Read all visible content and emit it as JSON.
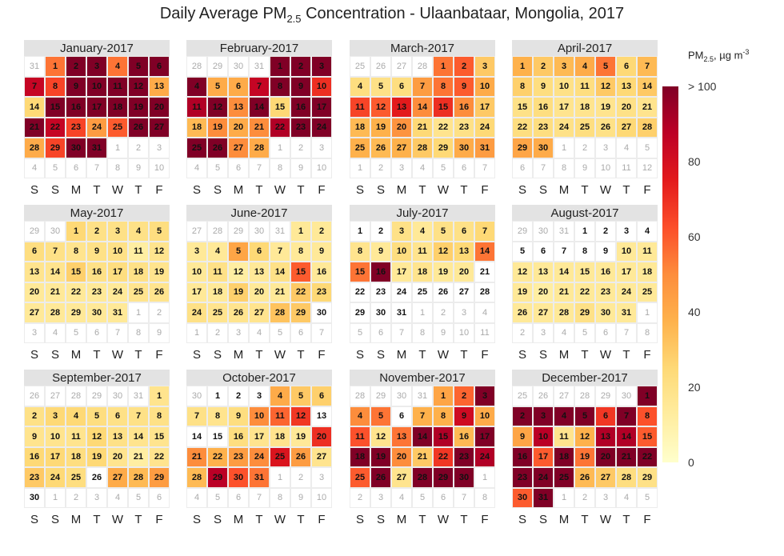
{
  "chart_data": {
    "type": "heatmap",
    "title_prefix": "Daily Average PM",
    "title_sub": "2.5",
    "title_suffix": " Concentration - Ulaanbataar, Mongolia, 2017",
    "year": 2017,
    "weekday_labels": [
      "S",
      "S",
      "M",
      "T",
      "W",
      "T",
      "F"
    ],
    "colorbar": {
      "label_prefix": "PM",
      "label_sub": "2.5",
      "label_mid": ", µg m",
      "label_sup": "-3",
      "ticks": [
        {
          "value": 100,
          "label": "> 100"
        },
        {
          "value": 80,
          "label": "80"
        },
        {
          "value": 60,
          "label": "60"
        },
        {
          "value": 40,
          "label": "40"
        },
        {
          "value": 20,
          "label": "20"
        },
        {
          "value": 0,
          "label": "0"
        }
      ],
      "range": [
        0,
        100
      ],
      "colors": [
        "#ffffcc",
        "#ffeda0",
        "#fed976",
        "#feb24c",
        "#fd8d3c",
        "#fc4e2a",
        "#e31a1c",
        "#bd0026",
        "#800026"
      ]
    },
    "months": [
      {
        "title": "January-2017",
        "values": [
          55,
          100,
          100,
          55,
          100,
          100,
          85,
          65,
          100,
          100,
          100,
          100,
          40,
          25,
          100,
          100,
          100,
          100,
          100,
          100,
          100,
          85,
          65,
          45,
          60,
          100,
          100,
          40,
          65,
          100,
          100
        ]
      },
      {
        "title": "February-2017",
        "values": [
          100,
          100,
          100,
          100,
          40,
          40,
          85,
          100,
          100,
          70,
          90,
          100,
          50,
          100,
          25,
          100,
          100,
          35,
          50,
          40,
          50,
          90,
          100,
          100,
          100,
          100,
          50,
          40
        ]
      },
      {
        "title": "March-2017",
        "values": [
          55,
          60,
          30,
          22,
          20,
          22,
          45,
          55,
          60,
          40,
          65,
          60,
          75,
          50,
          70,
          50,
          30,
          35,
          38,
          48,
          25,
          18,
          20,
          25,
          38,
          35,
          38,
          30,
          25,
          40,
          45
        ]
      },
      {
        "title": "April-2017",
        "values": [
          38,
          30,
          35,
          40,
          55,
          25,
          35,
          28,
          22,
          20,
          22,
          30,
          25,
          30,
          20,
          22,
          18,
          18,
          18,
          20,
          18,
          22,
          22,
          20,
          22,
          20,
          25,
          28,
          42,
          40
        ]
      },
      {
        "title": "May-2017",
        "values": [
          25,
          20,
          20,
          20,
          22,
          22,
          20,
          18,
          20,
          20,
          12,
          18,
          18,
          18,
          28,
          20,
          22,
          20,
          18,
          15,
          15,
          15,
          15,
          15,
          18,
          18,
          15,
          15,
          15,
          15,
          15
        ]
      },
      {
        "title": "June-2017",
        "values": [
          15,
          15,
          15,
          15,
          42,
          25,
          15,
          15,
          15,
          15,
          20,
          12,
          15,
          20,
          60,
          15,
          15,
          15,
          28,
          15,
          15,
          30,
          25,
          20,
          18,
          18,
          18,
          32,
          30,
          null
        ]
      },
      {
        "title": "July-2017",
        "values": [
          null,
          null,
          20,
          15,
          20,
          20,
          25,
          18,
          15,
          22,
          18,
          28,
          25,
          55,
          55,
          100,
          15,
          18,
          15,
          15,
          null,
          null,
          null,
          null,
          null,
          null,
          null,
          null,
          null,
          null,
          null
        ]
      },
      {
        "title": "August-2017",
        "values": [
          null,
          null,
          null,
          null,
          null,
          null,
          null,
          null,
          null,
          15,
          15,
          15,
          15,
          15,
          15,
          15,
          15,
          15,
          15,
          12,
          15,
          15,
          15,
          15,
          15,
          15,
          15,
          15,
          20,
          15,
          15
        ]
      },
      {
        "title": "September-2017",
        "values": [
          18,
          20,
          25,
          25,
          22,
          20,
          20,
          20,
          18,
          18,
          18,
          25,
          20,
          18,
          18,
          25,
          25,
          22,
          25,
          18,
          12,
          18,
          30,
          25,
          22,
          null,
          40,
          35,
          45,
          null
        ]
      },
      {
        "title": "October-2017",
        "values": [
          null,
          null,
          null,
          40,
          30,
          28,
          20,
          18,
          22,
          50,
          58,
          68,
          null,
          null,
          null,
          22,
          18,
          18,
          15,
          70,
          50,
          38,
          45,
          50,
          78,
          45,
          18,
          35,
          88,
          62,
          55
        ]
      },
      {
        "title": "November-2017",
        "values": [
          42,
          58,
          100,
          50,
          55,
          null,
          38,
          38,
          82,
          40,
          62,
          18,
          55,
          100,
          90,
          35,
          100,
          100,
          100,
          50,
          30,
          68,
          100,
          90,
          60,
          100,
          18,
          100,
          100,
          100
        ]
      },
      {
        "title": "December-2017",
        "values": [
          100,
          100,
          100,
          100,
          100,
          68,
          100,
          62,
          42,
          88,
          18,
          38,
          90,
          90,
          60,
          100,
          60,
          100,
          55,
          100,
          100,
          100,
          100,
          100,
          100,
          35,
          30,
          22,
          20,
          60,
          100
        ]
      }
    ]
  }
}
